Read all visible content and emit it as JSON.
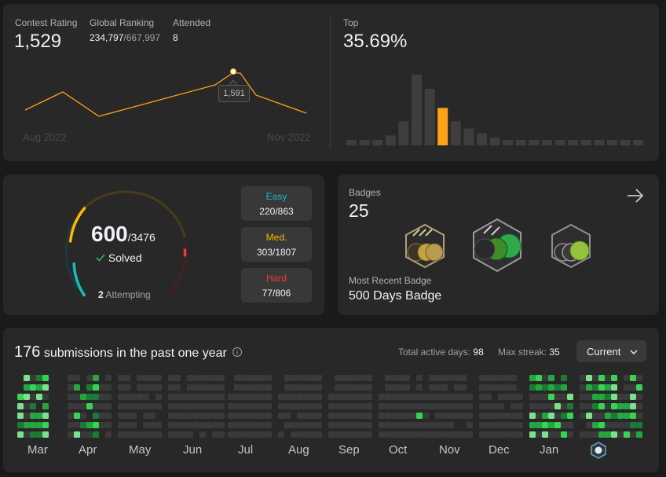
{
  "rating": {
    "contest_rating_label": "Contest Rating",
    "contest_rating_value": "1,529",
    "global_ranking_label": "Global Ranking",
    "global_rank": "234,797",
    "global_total": "/667,997",
    "attended_label": "Attended",
    "attended_value": "8",
    "top_label": "Top",
    "top_value": "35.69%",
    "start_date": "Aug 2022",
    "end_date": "Nov 2022",
    "tooltip_value": "1,591",
    "line_color": "#ffa116",
    "histogram_highlight_index": 7,
    "histogram_relative_heights": [
      0.07,
      0.07,
      0.07,
      0.14,
      0.34,
      1.0,
      0.8,
      0.53,
      0.34,
      0.24,
      0.17,
      0.11,
      0.07,
      0.07,
      0.07,
      0.07,
      0.07,
      0.07,
      0.07,
      0.07,
      0.07,
      0.07,
      0.07
    ]
  },
  "solved": {
    "solved_count": "600",
    "total": "/3476",
    "solved_label": "Solved",
    "attempting_count": "2",
    "attempting_label": "Attempting",
    "difficulties": [
      {
        "name": "Easy",
        "value": "220/863",
        "color": "#1cbaba"
      },
      {
        "name": "Med.",
        "value": "303/1807",
        "color": "#ffb700"
      },
      {
        "name": "Hard",
        "value": "77/806",
        "color": "#f63737"
      }
    ]
  },
  "badges": {
    "label": "Badges",
    "count": "25",
    "recent_label": "Most Recent Badge",
    "recent_name": "500 Days Badge",
    "arrow_icon": "arrow-right-icon"
  },
  "submissions": {
    "count": "176",
    "label": "submissions in the past one year",
    "active_days_label": "Total active days:",
    "active_days_value": "98",
    "max_streak_label": "Max streak:",
    "max_streak_value": "35",
    "period_select": "Current",
    "months": [
      "Mar",
      "Apr",
      "May",
      "Jun",
      "Jul",
      "Aug",
      "Sep",
      "Oct",
      "Nov",
      "Dec",
      "Jan"
    ]
  }
}
